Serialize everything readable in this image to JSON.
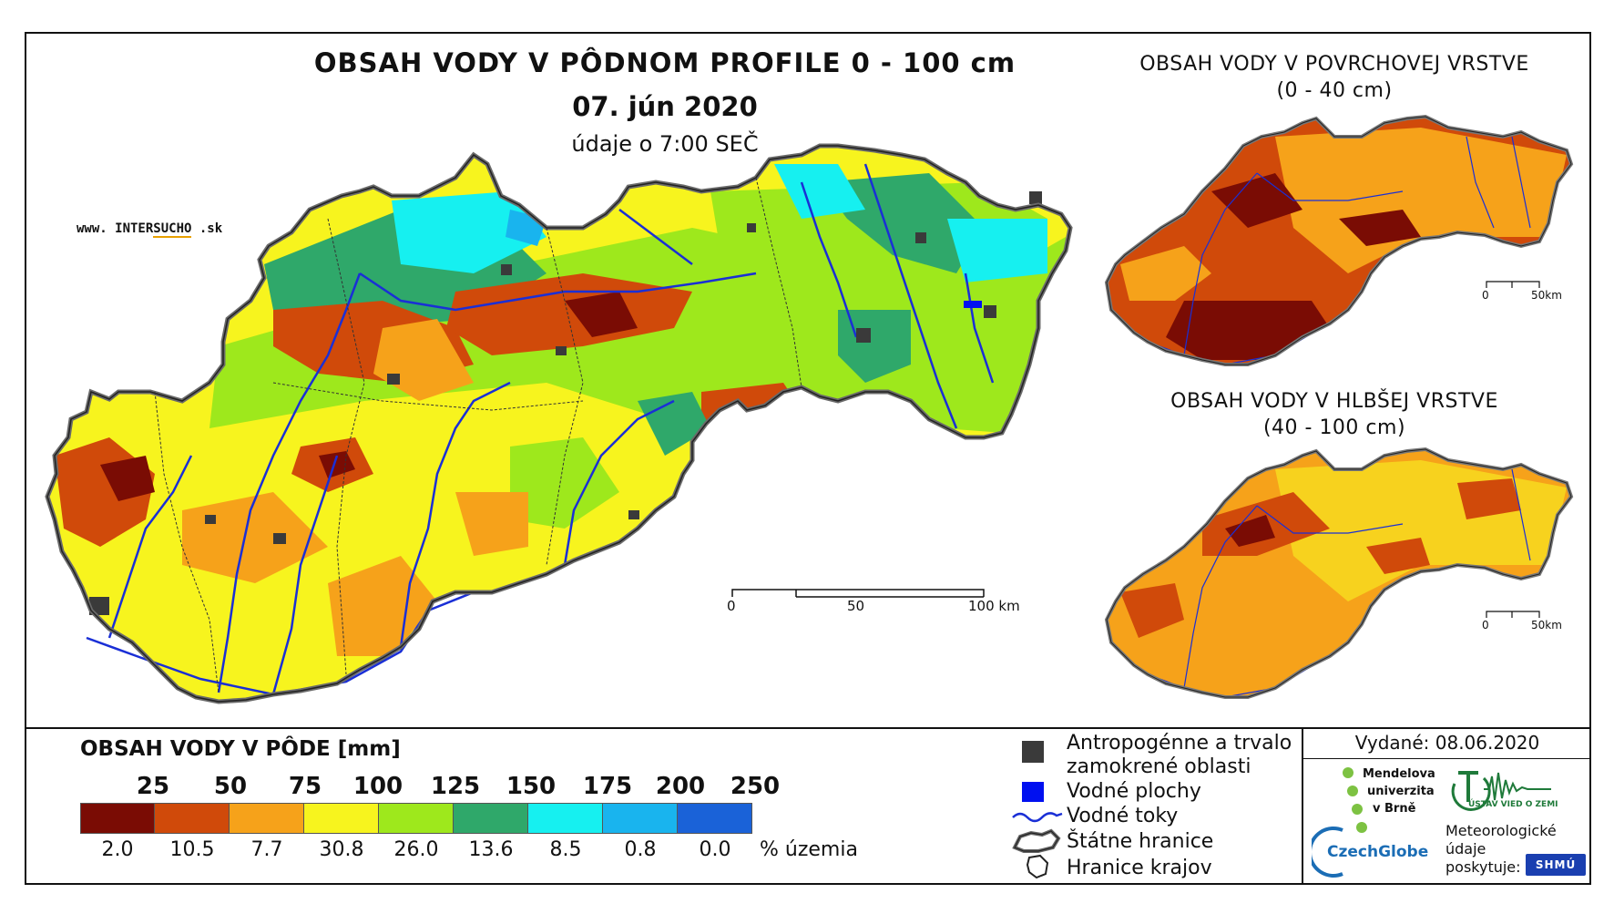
{
  "title": "OBSAH VODY V PÔDNOM PROFILE 0 - 100 cm",
  "date": "07. jún 2020",
  "time_note": "údaje o 7:00 SEČ",
  "brand": {
    "prefix": "www. INTER",
    "mid": "SUCHO",
    "suffix": " .sk"
  },
  "insets": {
    "surface": {
      "title": "OBSAH VODY V POVRCHOVEJ VRSTVE",
      "subtitle": "(0 - 40 cm)",
      "scale_start": "0",
      "scale_end": "50km"
    },
    "deep": {
      "title": "OBSAH VODY V HLBŠEJ VRSTVE",
      "subtitle": "(40 - 100 cm)",
      "scale_start": "0",
      "scale_end": "50km"
    }
  },
  "main_scale": {
    "start": "0",
    "mid": "50",
    "end": "100 km"
  },
  "legend": {
    "title": "OBSAH VODY V PÔDE [mm]",
    "thresholds": [
      "25",
      "50",
      "75",
      "100",
      "125",
      "150",
      "175",
      "200",
      "250"
    ],
    "classes": [
      {
        "color": "#7a0c04",
        "pct": "2.0"
      },
      {
        "color": "#d04a0a",
        "pct": "10.5"
      },
      {
        "color": "#f6a21a",
        "pct": "7.7"
      },
      {
        "color": "#f7f41e",
        "pct": "30.8"
      },
      {
        "color": "#9ee81c",
        "pct": "26.0"
      },
      {
        "color": "#2fa86a",
        "pct": "13.6"
      },
      {
        "color": "#16f0f0",
        "pct": "8.5"
      },
      {
        "color": "#19b4ee",
        "pct": "0.8"
      },
      {
        "color": "#1a62d8",
        "pct": "0.0"
      }
    ],
    "pct_unit": "% územia"
  },
  "symbols": {
    "urban_line1": "Antropogénne a trvalo",
    "urban_line2": "zamokrené oblasti",
    "water_bodies": "Vodné plochy",
    "rivers": "Vodné toky",
    "state_border": "Štátne hranice",
    "region_border": "Hranice krajov"
  },
  "issued": "Vydané: 08.06.2020",
  "logos": {
    "mendel_1": "Mendelova",
    "mendel_2": "univerzita",
    "mendel_3": "v Brně",
    "czechglobe": "CzechGlobe",
    "ustav": "ÚSTAV VIED O ZEMI",
    "meteo_1": "Meteorologické",
    "meteo_2": "údaje",
    "meteo_3": "poskytuje:",
    "shmu": "SHMÚ"
  },
  "colors": {
    "river": "#1a2fd6",
    "urban": "#333333",
    "water": "#0010f0"
  }
}
